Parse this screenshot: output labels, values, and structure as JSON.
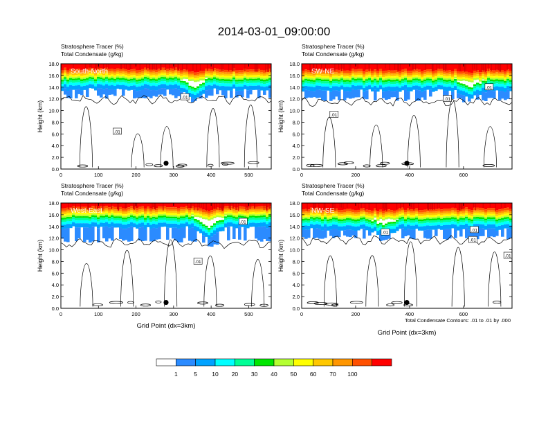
{
  "figure": {
    "title": "2014-03-01_09:00:00",
    "contour_note": "Total Condensate Contours: .01 to .01 by .000",
    "colorbar": {
      "labels": [
        "1",
        "5",
        "10",
        "20",
        "30",
        "40",
        "50",
        "60",
        "70",
        "100"
      ],
      "colors": [
        "#ffffff",
        "#2b8bff",
        "#00a2ff",
        "#00ffff",
        "#00ff96",
        "#00e600",
        "#b4ff32",
        "#ffff00",
        "#ffc800",
        "#ff9600",
        "#ff5000",
        "#ff0000"
      ]
    }
  },
  "chart_data": [
    {
      "type": "heatmap",
      "panel": "South-North",
      "title_line1": "Stratosphere Tracer   (%)",
      "title_line2": "Total Condensate   (g/kg)",
      "ylabel": "Height (km)",
      "xlabel": "",
      "xlim": [
        0,
        560
      ],
      "ylim": [
        0,
        18
      ],
      "xticks": [
        "0",
        "100",
        "200",
        "300",
        "400",
        "500"
      ],
      "xtick_values": [
        0,
        100,
        200,
        300,
        400,
        500
      ],
      "yticks": [
        "0.0",
        "2.0",
        "4.0",
        "6.0",
        "8.0",
        "10.0",
        "12.0",
        "14.0",
        "16.0",
        "18.0"
      ],
      "contour_labels": [
        {
          "text": ".01",
          "x": 330,
          "y": 12.3
        },
        {
          "text": ".01",
          "x": 150,
          "y": 6.4
        }
      ],
      "marker": {
        "x": 280,
        "y": 1.0
      },
      "tropopause_km": 15.5,
      "cloud_base_km": 12.2,
      "dip": {
        "x_center": 350,
        "width": 40,
        "depth": 1.6
      }
    },
    {
      "type": "heatmap",
      "panel": "SW-NE",
      "title_line1": "Stratosphere Tracer   (%)",
      "title_line2": "Total Condensate   (g/kg)",
      "ylabel": "Height (km)",
      "xlabel": "",
      "xlim": [
        0,
        780
      ],
      "ylim": [
        0,
        18
      ],
      "xticks": [
        "0",
        "200",
        "400",
        "600"
      ],
      "xtick_values": [
        0,
        200,
        400,
        600
      ],
      "yticks": [
        "0.0",
        "2.0",
        "4.0",
        "6.0",
        "8.0",
        "10.0",
        "12.0",
        "14.0",
        "16.0",
        "18.0"
      ],
      "contour_labels": [
        {
          "text": ".01",
          "x": 540,
          "y": 12.0
        },
        {
          "text": ".01",
          "x": 695,
          "y": 14.0
        },
        {
          "text": ".01",
          "x": 120,
          "y": 9.3
        }
      ],
      "marker": {
        "x": 390,
        "y": 1.0
      },
      "tropopause_km": 15.3,
      "cloud_base_km": 11.8,
      "dip": {
        "x_center": 620,
        "width": 60,
        "depth": 1.4
      }
    },
    {
      "type": "heatmap",
      "panel": "West-East",
      "title_line1": "Stratosphere Tracer   (%)",
      "title_line2": "Total Condensate   (g/kg)",
      "ylabel": "Height (km)",
      "xlabel": "Grid Point (dx=3km)",
      "xlim": [
        0,
        560
      ],
      "ylim": [
        0,
        18
      ],
      "xticks": [
        "0",
        "100",
        "200",
        "300",
        "400",
        "500"
      ],
      "xtick_values": [
        0,
        100,
        200,
        300,
        400,
        500
      ],
      "yticks": [
        "0.0",
        "2.0",
        "4.0",
        "6.0",
        "8.0",
        "10.0",
        "12.0",
        "14.0",
        "16.0",
        "18.0"
      ],
      "contour_labels": [
        {
          "text": ".01",
          "x": 485,
          "y": 14.8
        },
        {
          "text": ".01",
          "x": 365,
          "y": 8.0
        }
      ],
      "marker": {
        "x": 280,
        "y": 1.0
      },
      "tropopause_km": 15.7,
      "cloud_base_km": 11.4,
      "dip": {
        "x_center": 390,
        "width": 50,
        "depth": 1.8
      }
    },
    {
      "type": "heatmap",
      "panel": "NW-SE",
      "title_line1": "Stratosphere Tracer   (%)",
      "title_line2": "Total Condensate   (g/kg)",
      "ylabel": "Height (km)",
      "xlabel": "Grid Point (dx=3km)",
      "xlim": [
        0,
        780
      ],
      "ylim": [
        0,
        18
      ],
      "xticks": [
        "0",
        "200",
        "400",
        "600"
      ],
      "xtick_values": [
        0,
        200,
        400,
        600
      ],
      "yticks": [
        "0.0",
        "2.0",
        "4.0",
        "6.0",
        "8.0",
        "10.0",
        "12.0",
        "14.0",
        "16.0",
        "18.0"
      ],
      "contour_labels": [
        {
          "text": ".01",
          "x": 310,
          "y": 13.0
        },
        {
          "text": ".01",
          "x": 635,
          "y": 11.7
        },
        {
          "text": ".01",
          "x": 640,
          "y": 13.4
        },
        {
          "text": ".01",
          "x": 765,
          "y": 9.0
        }
      ],
      "marker": {
        "x": 390,
        "y": 1.0
      },
      "tropopause_km": 15.4,
      "cloud_base_km": 11.9,
      "dip": {
        "x_center": 300,
        "width": 60,
        "depth": 1.2
      }
    }
  ]
}
